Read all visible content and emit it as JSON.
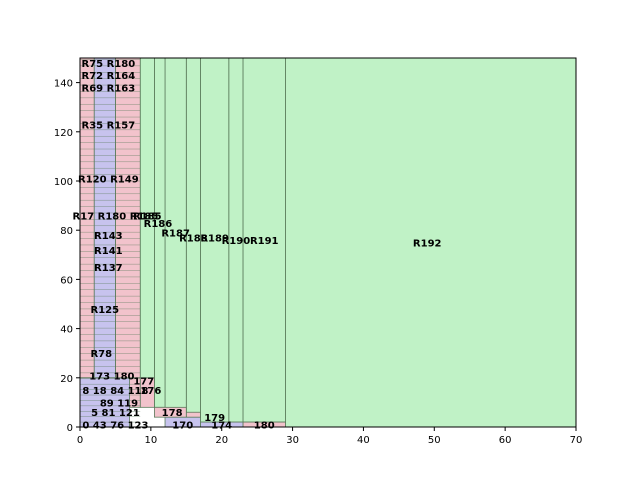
{
  "chart_data": {
    "type": "treemap",
    "xlim": [
      0,
      70
    ],
    "ylim": [
      0,
      150
    ],
    "x_ticks": [
      "0",
      "10",
      "20",
      "30",
      "40",
      "50",
      "60",
      "70"
    ],
    "y_ticks": [
      "0",
      "20",
      "40",
      "60",
      "80",
      "100",
      "120",
      "140"
    ],
    "grid": false,
    "colors": {
      "pink": "#f2c3cc",
      "lavender": "#c7c3ee",
      "green": "#c0f2c6",
      "edge": "#5a7a5a"
    },
    "rects": [
      {
        "label": "R192",
        "color": "green",
        "x0": 29,
        "x1": 70,
        "y0": 0,
        "y1": 150
      },
      {
        "label": "R191",
        "color": "green",
        "x0": 23,
        "x1": 29,
        "y0": 2,
        "y1": 150
      },
      {
        "label": "R190",
        "color": "green",
        "x0": 21,
        "x1": 23,
        "y0": 2,
        "y1": 150
      },
      {
        "label": "R189",
        "color": "green",
        "x0": 17,
        "x1": 21,
        "y0": 2,
        "y1": 150
      },
      {
        "label": "R188",
        "color": "green",
        "x0": 15,
        "x1": 17,
        "y0": 4,
        "y1": 150
      },
      {
        "label": "R187",
        "color": "green",
        "x0": 12,
        "x1": 15,
        "y0": 6,
        "y1": 150
      },
      {
        "label": "R186",
        "color": "green",
        "x0": 10.5,
        "x1": 12,
        "y0": 8,
        "y1": 150
      },
      {
        "label": "R185",
        "color": "green",
        "x0": 8.5,
        "x1": 10.5,
        "y0": 18,
        "y1": 150
      },
      {
        "label": "R180",
        "color": "pink",
        "x0": 5,
        "x1": 8.5,
        "y0": 20,
        "y1": 150
      },
      {
        "label": "R75",
        "color": "lavender",
        "x0": 2,
        "x1": 5,
        "y0": 20,
        "y1": 150
      },
      {
        "label": "",
        "color": "pink",
        "x0": 0,
        "x1": 2,
        "y0": 20,
        "y1": 150
      },
      {
        "label": "180",
        "color": "pink",
        "x0": 23,
        "x1": 29,
        "y0": 0,
        "y1": 2
      },
      {
        "label": "174",
        "color": "lavender",
        "x0": 17,
        "x1": 23,
        "y0": 0,
        "y1": 2
      },
      {
        "label": "170",
        "color": "lavender",
        "x0": 12,
        "x1": 17,
        "y0": 0,
        "y1": 4
      },
      {
        "label": "179",
        "color": "pink",
        "x0": 15,
        "x1": 17,
        "y0": 4,
        "y1": 6
      },
      {
        "label": "178",
        "color": "pink",
        "x0": 10.5,
        "x1": 15,
        "y0": 4,
        "y1": 8
      },
      {
        "label": "177",
        "color": "pink",
        "x0": 8.5,
        "x1": 10.5,
        "y0": 8,
        "y1": 20
      },
      {
        "label": "176",
        "color": "pink",
        "x0": 7,
        "x1": 8.5,
        "y0": 8,
        "y1": 20
      },
      {
        "label": "",
        "color": "lavender",
        "x0": 0,
        "x1": 7,
        "y0": 0,
        "y1": 20
      }
    ],
    "labels": [
      {
        "text": "R192",
        "x": 49,
        "y": 75
      },
      {
        "text": "R191",
        "x": 26,
        "y": 76
      },
      {
        "text": "R190",
        "x": 22,
        "y": 76
      },
      {
        "text": "R189",
        "x": 19,
        "y": 77
      },
      {
        "text": "R188",
        "x": 16,
        "y": 77
      },
      {
        "text": "R187",
        "x": 13.5,
        "y": 79
      },
      {
        "text": "R186",
        "x": 11,
        "y": 83
      },
      {
        "text": "R185",
        "x": 9.5,
        "y": 86
      },
      {
        "text": "R75 R180",
        "x": 4,
        "y": 148
      },
      {
        "text": "180",
        "x": 26,
        "y": 1
      },
      {
        "text": "174",
        "x": 20,
        "y": 1
      },
      {
        "text": "170",
        "x": 14.5,
        "y": 1
      },
      {
        "text": "179",
        "x": 19,
        "y": 4
      },
      {
        "text": "178",
        "x": 13,
        "y": 6
      },
      {
        "text": "177",
        "x": 9,
        "y": 19
      },
      {
        "text": "176",
        "x": 10,
        "y": 15
      },
      {
        "text": "0 43 76 123",
        "x": 5,
        "y": 1
      },
      {
        "text": "5 81 121",
        "x": 5,
        "y": 6
      },
      {
        "text": "89 119",
        "x": 5.5,
        "y": 10
      },
      {
        "text": "8 18 84 118",
        "x": 5,
        "y": 15
      },
      {
        "text": "173 180",
        "x": 4.5,
        "y": 21
      },
      {
        "text": "R78",
        "x": 3,
        "y": 30
      },
      {
        "text": "R125",
        "x": 3.5,
        "y": 48
      },
      {
        "text": "R137",
        "x": 4,
        "y": 65
      },
      {
        "text": "R141",
        "x": 4,
        "y": 72
      },
      {
        "text": "R143",
        "x": 4,
        "y": 78
      },
      {
        "text": "R17 R180 R185",
        "x": 5,
        "y": 86
      },
      {
        "text": "R120 R149",
        "x": 4,
        "y": 101
      },
      {
        "text": "R35 R157",
        "x": 4,
        "y": 123
      },
      {
        "text": "R69 R163",
        "x": 4,
        "y": 138
      },
      {
        "text": "R72 R164",
        "x": 4,
        "y": 143
      }
    ]
  }
}
